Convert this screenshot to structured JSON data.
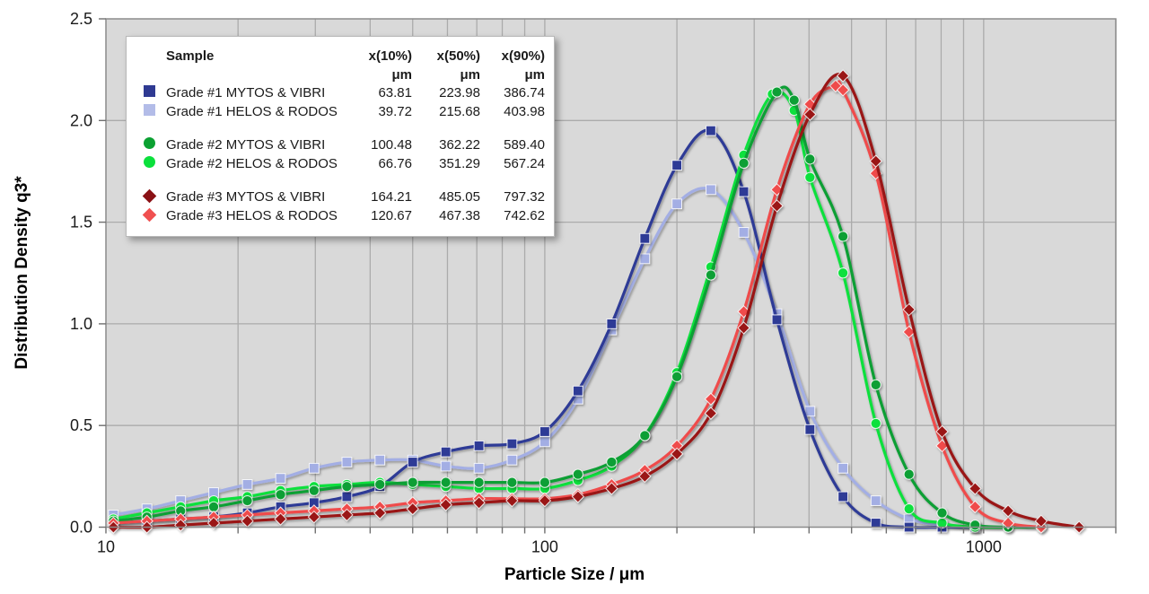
{
  "axes": {
    "x": {
      "title": "Particle Size / μm",
      "scale": "log",
      "min": 10,
      "max": 2000,
      "tick_values": [
        10,
        100,
        1000
      ],
      "tick_labels": [
        "10",
        "100",
        "1000"
      ]
    },
    "y": {
      "title": "Distribution Density q3*",
      "min": 0,
      "max": 2.5,
      "step": 0.5,
      "tick_labels": [
        "0.0",
        "0.5",
        "1.0",
        "1.5",
        "2.0",
        "2.5"
      ]
    }
  },
  "legend": {
    "columns": {
      "sample": "Sample",
      "x10": "x(10%)",
      "x50": "x(50%)",
      "x90": "x(90%)",
      "unit": "μm"
    },
    "rows": [
      {
        "label": "Grade #1 MYTOS & VIBRI",
        "x10": "63.81",
        "x50": "223.98",
        "x90": "386.74",
        "marker": "square",
        "color": "#2F3A92",
        "group": 1
      },
      {
        "label": "Grade #1 HELOS & RODOS",
        "x10": "39.72",
        "x50": "215.68",
        "x90": "403.98",
        "marker": "square",
        "color": "#B3BCE8",
        "group": 1
      },
      {
        "label": "Grade #2 MYTOS & VIBRI",
        "x10": "100.48",
        "x50": "362.22",
        "x90": "589.40",
        "marker": "circle",
        "color": "#0BA132",
        "group": 2
      },
      {
        "label": "Grade #2 HELOS & RODOS",
        "x10": "66.76",
        "x50": "351.29",
        "x90": "567.24",
        "marker": "circle",
        "color": "#0BE03C",
        "group": 2
      },
      {
        "label": "Grade #3 MYTOS & VIBRI",
        "x10": "164.21",
        "x50": "485.05",
        "x90": "797.32",
        "marker": "diamond",
        "color": "#8A1115",
        "group": 3
      },
      {
        "label": "Grade #3 HELOS & RODOS",
        "x10": "120.67",
        "x50": "467.38",
        "x90": "742.62",
        "marker": "diamond",
        "color": "#F05050",
        "group": 3
      }
    ]
  },
  "chart_data": {
    "type": "line",
    "x_scale": "log",
    "x_range": [
      10,
      2000
    ],
    "y_range": [
      0,
      2.5
    ],
    "grid": true,
    "plot_bg": "#D9D9D9",
    "grid_color": "#ABABAB",
    "border_color": "#8C8C8C",
    "xlabel": "Particle Size / μm",
    "ylabel": "Distribution Density q3*",
    "legend_position": "top-left",
    "series": [
      {
        "name": "Grade #1 MYTOS & VIBRI",
        "marker": "square",
        "color": "#2E3A96",
        "z": 2,
        "points": [
          [
            10.4,
            0.02
          ],
          [
            12.4,
            0.03
          ],
          [
            14.8,
            0.04
          ],
          [
            17.6,
            0.05
          ],
          [
            21,
            0.07
          ],
          [
            25,
            0.1
          ],
          [
            29.8,
            0.12
          ],
          [
            35.4,
            0.15
          ],
          [
            42.1,
            0.2
          ],
          [
            50,
            0.32
          ],
          [
            59.5,
            0.37
          ],
          [
            70.8,
            0.4
          ],
          [
            84.2,
            0.41
          ],
          [
            100,
            0.47
          ],
          [
            119,
            0.67
          ],
          [
            142,
            1.0
          ],
          [
            169,
            1.42
          ],
          [
            200,
            1.78
          ],
          [
            239,
            1.95
          ],
          [
            284,
            1.65
          ],
          [
            338,
            1.02
          ],
          [
            402,
            0.48
          ],
          [
            478,
            0.15
          ],
          [
            568,
            0.02
          ],
          [
            676,
            0.0
          ],
          [
            804,
            0.0
          ],
          [
            956,
            0.0
          ]
        ]
      },
      {
        "name": "Grade #1 HELOS & RODOS",
        "marker": "square",
        "color": "#A3AEE4",
        "z": 1,
        "points": [
          [
            10.4,
            0.06
          ],
          [
            12.4,
            0.09
          ],
          [
            14.8,
            0.13
          ],
          [
            17.6,
            0.17
          ],
          [
            21,
            0.21
          ],
          [
            25,
            0.24
          ],
          [
            29.8,
            0.29
          ],
          [
            35.4,
            0.32
          ],
          [
            42.1,
            0.33
          ],
          [
            50,
            0.33
          ],
          [
            59.5,
            0.3
          ],
          [
            70.8,
            0.29
          ],
          [
            84.2,
            0.33
          ],
          [
            100,
            0.42
          ],
          [
            119,
            0.63
          ],
          [
            142,
            0.97
          ],
          [
            169,
            1.32
          ],
          [
            200,
            1.59
          ],
          [
            239,
            1.66
          ],
          [
            284,
            1.45
          ],
          [
            338,
            1.05
          ],
          [
            402,
            0.57
          ],
          [
            478,
            0.29
          ],
          [
            568,
            0.13
          ],
          [
            676,
            0.04
          ],
          [
            804,
            0.01
          ],
          [
            956,
            0.0
          ]
        ]
      },
      {
        "name": "Grade #2 MYTOS & VIBRI",
        "marker": "circle",
        "color": "#0E9F34",
        "z": 4,
        "points": [
          [
            10.4,
            0.03
          ],
          [
            12.4,
            0.05
          ],
          [
            14.8,
            0.08
          ],
          [
            17.6,
            0.1
          ],
          [
            21,
            0.13
          ],
          [
            25,
            0.16
          ],
          [
            29.8,
            0.18
          ],
          [
            35.4,
            0.2
          ],
          [
            42.1,
            0.21
          ],
          [
            50,
            0.22
          ],
          [
            59.5,
            0.22
          ],
          [
            70.8,
            0.22
          ],
          [
            84.2,
            0.22
          ],
          [
            100,
            0.22
          ],
          [
            119,
            0.26
          ],
          [
            142,
            0.32
          ],
          [
            169,
            0.45
          ],
          [
            200,
            0.74
          ],
          [
            239,
            1.24
          ],
          [
            284,
            1.79
          ],
          [
            338,
            2.14
          ],
          [
            370,
            2.1
          ],
          [
            402,
            1.81
          ],
          [
            478,
            1.43
          ],
          [
            568,
            0.7
          ],
          [
            676,
            0.26
          ],
          [
            804,
            0.07
          ],
          [
            956,
            0.01
          ],
          [
            1137,
            0.0
          ],
          [
            1352,
            0.0
          ]
        ]
      },
      {
        "name": "Grade #2 HELOS & RODOS",
        "marker": "circle",
        "color": "#0BE03C",
        "z": 3,
        "points": [
          [
            10.4,
            0.04
          ],
          [
            12.4,
            0.07
          ],
          [
            14.8,
            0.1
          ],
          [
            17.6,
            0.13
          ],
          [
            21,
            0.15
          ],
          [
            25,
            0.18
          ],
          [
            29.8,
            0.2
          ],
          [
            35.4,
            0.21
          ],
          [
            42.1,
            0.22
          ],
          [
            50,
            0.21
          ],
          [
            59.5,
            0.2
          ],
          [
            70.8,
            0.19
          ],
          [
            84.2,
            0.19
          ],
          [
            100,
            0.19
          ],
          [
            119,
            0.23
          ],
          [
            142,
            0.3
          ],
          [
            169,
            0.45
          ],
          [
            200,
            0.76
          ],
          [
            239,
            1.28
          ],
          [
            284,
            1.83
          ],
          [
            330,
            2.13
          ],
          [
            370,
            2.05
          ],
          [
            402,
            1.72
          ],
          [
            478,
            1.25
          ],
          [
            568,
            0.51
          ],
          [
            676,
            0.09
          ],
          [
            804,
            0.02
          ],
          [
            956,
            0.0
          ],
          [
            1137,
            0.0
          ]
        ]
      },
      {
        "name": "Grade #3 MYTOS & VIBRI",
        "marker": "diamond",
        "color": "#9A1414",
        "z": 6,
        "points": [
          [
            10.4,
            0.0
          ],
          [
            12.4,
            0.0
          ],
          [
            14.8,
            0.01
          ],
          [
            17.6,
            0.02
          ],
          [
            21,
            0.03
          ],
          [
            25,
            0.04
          ],
          [
            29.8,
            0.05
          ],
          [
            35.4,
            0.06
          ],
          [
            42.1,
            0.07
          ],
          [
            50,
            0.09
          ],
          [
            59.5,
            0.11
          ],
          [
            70.8,
            0.12
          ],
          [
            84.2,
            0.13
          ],
          [
            100,
            0.13
          ],
          [
            119,
            0.15
          ],
          [
            142,
            0.19
          ],
          [
            169,
            0.25
          ],
          [
            200,
            0.36
          ],
          [
            239,
            0.56
          ],
          [
            284,
            0.98
          ],
          [
            338,
            1.58
          ],
          [
            402,
            2.03
          ],
          [
            478,
            2.22
          ],
          [
            568,
            1.8
          ],
          [
            676,
            1.07
          ],
          [
            804,
            0.47
          ],
          [
            956,
            0.19
          ],
          [
            1137,
            0.08
          ],
          [
            1352,
            0.03
          ],
          [
            1650,
            0.0
          ]
        ]
      },
      {
        "name": "Grade #3 HELOS & RODOS",
        "marker": "diamond",
        "color": "#EF4B4B",
        "z": 5,
        "points": [
          [
            10.4,
            0.02
          ],
          [
            12.4,
            0.03
          ],
          [
            14.8,
            0.04
          ],
          [
            17.6,
            0.05
          ],
          [
            21,
            0.06
          ],
          [
            25,
            0.07
          ],
          [
            29.8,
            0.08
          ],
          [
            35.4,
            0.09
          ],
          [
            42.1,
            0.1
          ],
          [
            50,
            0.12
          ],
          [
            59.5,
            0.13
          ],
          [
            70.8,
            0.14
          ],
          [
            84.2,
            0.14
          ],
          [
            100,
            0.14
          ],
          [
            119,
            0.16
          ],
          [
            142,
            0.21
          ],
          [
            169,
            0.28
          ],
          [
            200,
            0.4
          ],
          [
            239,
            0.63
          ],
          [
            284,
            1.06
          ],
          [
            338,
            1.66
          ],
          [
            402,
            2.08
          ],
          [
            460,
            2.17
          ],
          [
            478,
            2.15
          ],
          [
            568,
            1.74
          ],
          [
            676,
            0.96
          ],
          [
            804,
            0.4
          ],
          [
            956,
            0.1
          ],
          [
            1137,
            0.02
          ],
          [
            1352,
            0.0
          ]
        ]
      }
    ]
  }
}
